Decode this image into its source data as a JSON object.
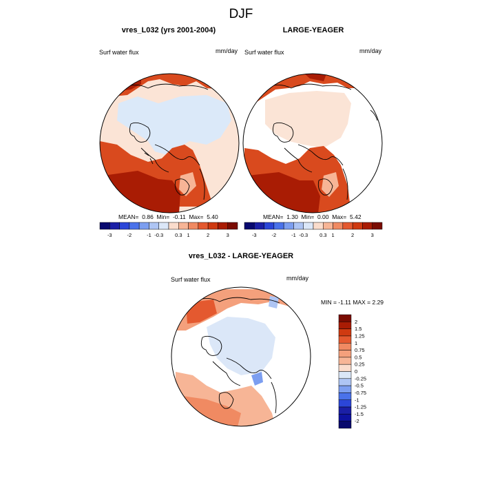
{
  "figure": {
    "title": "DJF",
    "panels": [
      {
        "title": "vres_L032 (yrs 2001-2004)",
        "variable": "Surf water flux",
        "units": "mm/day",
        "stats": {
          "mean_label": "MEAN=",
          "mean": "0.86",
          "min_label": "Min=",
          "min": "-0.11",
          "max_label": "Max=",
          "max": "5.40"
        }
      },
      {
        "title": "LARGE-YEAGER",
        "variable": "Surf water flux",
        "units": "mm/day",
        "stats": {
          "mean_label": "MEAN=",
          "mean": "1.30",
          "min_label": "Min=",
          "min": "0.00",
          "max_label": "Max=",
          "max": "5.42"
        }
      },
      {
        "title": "vres_L032 - LARGE-YEAGER",
        "variable": "Surf water flux",
        "units": "mm/day",
        "stats_text": "MIN =  -1.11 MAX =  2.29"
      }
    ],
    "colorbar_top": {
      "colors": [
        "#08096e",
        "#1b1fa6",
        "#2b46d8",
        "#4a72ea",
        "#7c9ef0",
        "#aec5f4",
        "#dbe7f8",
        "#fadccc",
        "#f7b596",
        "#f08a62",
        "#e4592f",
        "#cf3a11",
        "#a91c04",
        "#7a0c02"
      ],
      "labels": [
        "-3",
        "-2",
        "-1",
        "-0.3",
        "0.3",
        "1",
        "2",
        "3"
      ]
    },
    "colorbar_diff": {
      "colors": [
        "#7a0c02",
        "#a91c04",
        "#cf3a11",
        "#e4592f",
        "#f08a62",
        "#f4a07c",
        "#f7b596",
        "#fadccc",
        "#dbe7f8",
        "#aec5f4",
        "#7c9ef0",
        "#4a72ea",
        "#2b46d8",
        "#1b1fa6",
        "#0e12a0",
        "#08096e"
      ],
      "labels": [
        "2",
        "1.5",
        "1.25",
        "1",
        "0.75",
        "0.5",
        "0.25",
        "0",
        "-0.25",
        "-0.5",
        "-0.75",
        "-1",
        "-1.25",
        "-1.5",
        "-2"
      ]
    }
  }
}
